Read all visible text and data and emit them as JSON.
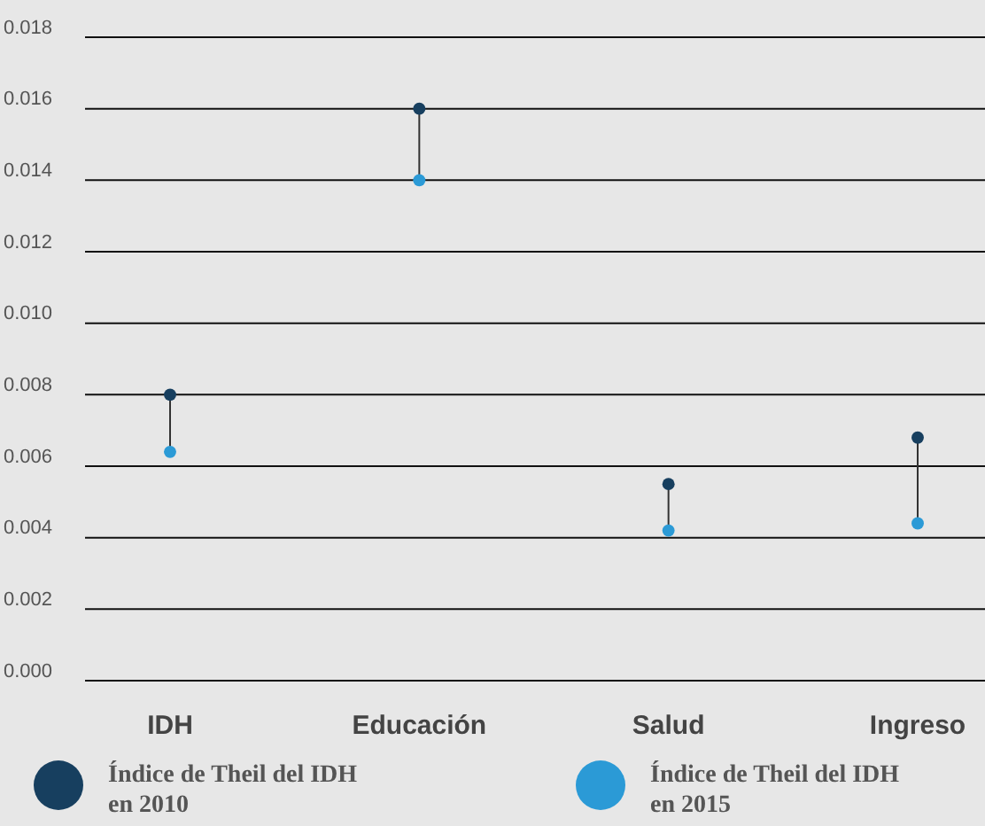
{
  "chart_data": {
    "type": "scatter",
    "categories": [
      "IDH",
      "Educación",
      "Salud",
      "Ingreso"
    ],
    "series": [
      {
        "name": "Índice de Theil del IDH en 2010",
        "color": "#173f5f",
        "values": [
          0.008,
          0.016,
          0.0055,
          0.0068
        ]
      },
      {
        "name": "Índice de Theil del IDH en 2015",
        "color": "#2b9ad6",
        "values": [
          0.0064,
          0.014,
          0.0042,
          0.0044
        ]
      }
    ],
    "ylim": [
      0,
      0.018
    ],
    "yticks": [
      {
        "value": 0,
        "label": "0.000"
      },
      {
        "value": 0.002,
        "label": "0.002"
      },
      {
        "value": 0.004,
        "label": "0.004"
      },
      {
        "value": 0.006,
        "label": "0.006"
      },
      {
        "value": 0.008,
        "label": "0.008"
      },
      {
        "value": 0.01,
        "label": "0.010"
      },
      {
        "value": 0.012,
        "label": "0.012"
      },
      {
        "value": 0.014,
        "label": "0.014"
      },
      {
        "value": 0.016,
        "label": "0.016"
      },
      {
        "value": 0.018,
        "label": "0.018"
      }
    ],
    "grid": "y",
    "legend": "bottom",
    "marker": "circle"
  }
}
